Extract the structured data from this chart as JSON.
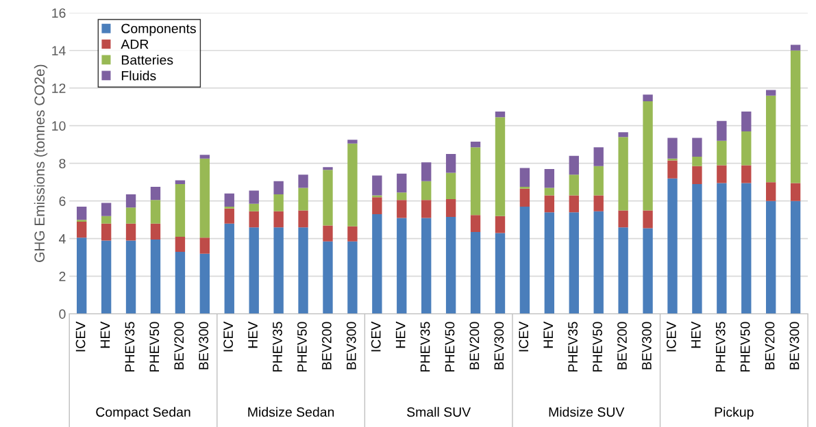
{
  "chart_data": {
    "type": "bar",
    "stacked": true,
    "ylabel": "GHG Emissions (tonnes CO2e)",
    "categories": [
      "ICEV",
      "HEV",
      "PHEV35",
      "PHEV50",
      "BEV200",
      "BEV300",
      "ICEV",
      "HEV",
      "PHEV35",
      "PHEV50",
      "BEV200",
      "BEV300",
      "ICEV",
      "HEV",
      "PHEV35",
      "PHEV50",
      "BEV200",
      "BEV300",
      "ICEV",
      "HEV",
      "PHEV35",
      "PHEV50",
      "BEV200",
      "BEV300",
      "ICEV",
      "HEV",
      "PHEV35",
      "PHEV50",
      "BEV200",
      "BEV300"
    ],
    "series": [
      {
        "name": "Components",
        "color": "#4a7ebb",
        "values": [
          4.05,
          3.9,
          3.9,
          3.95,
          3.3,
          3.2,
          4.8,
          4.6,
          4.6,
          4.6,
          3.85,
          3.85,
          5.3,
          5.1,
          5.1,
          5.15,
          4.35,
          4.3,
          5.7,
          5.4,
          5.4,
          5.45,
          4.6,
          4.55,
          7.2,
          6.9,
          6.95,
          6.95,
          6.0,
          6.0
        ]
      },
      {
        "name": "ADR",
        "color": "#be4b48",
        "values": [
          0.85,
          0.9,
          0.9,
          0.85,
          0.8,
          0.85,
          0.8,
          0.85,
          0.85,
          0.9,
          0.85,
          0.8,
          0.9,
          0.95,
          0.95,
          0.95,
          0.9,
          0.9,
          0.95,
          0.9,
          0.9,
          0.85,
          0.9,
          0.95,
          0.95,
          0.95,
          0.95,
          0.95,
          1.0,
          0.95
        ]
      },
      {
        "name": "Batteries",
        "color": "#98b954",
        "values": [
          0.1,
          0.4,
          0.85,
          1.25,
          2.8,
          4.2,
          0.1,
          0.4,
          0.9,
          1.2,
          2.95,
          4.4,
          0.1,
          0.4,
          1.0,
          1.4,
          3.6,
          5.25,
          0.1,
          0.4,
          1.1,
          1.55,
          3.9,
          5.8,
          0.1,
          0.5,
          1.3,
          1.8,
          4.6,
          7.05
        ]
      },
      {
        "name": "Fluids",
        "color": "#7d60a0",
        "values": [
          0.7,
          0.7,
          0.7,
          0.7,
          0.2,
          0.2,
          0.7,
          0.7,
          0.7,
          0.7,
          0.15,
          0.2,
          1.05,
          1.0,
          1.0,
          1.0,
          0.3,
          0.3,
          1.0,
          1.0,
          1.0,
          1.0,
          0.25,
          0.35,
          1.1,
          1.0,
          1.05,
          1.05,
          0.3,
          0.3
        ]
      }
    ],
    "ylim": [
      0,
      16
    ],
    "yticks": [
      0,
      2,
      4,
      6,
      8,
      10,
      12,
      14,
      16
    ],
    "grid": "y",
    "legend": "top left",
    "annotations": [
      "Compact Sedan",
      "Midsize Sedan",
      "Small SUV",
      "Midsize SUV",
      "Pickup"
    ]
  }
}
